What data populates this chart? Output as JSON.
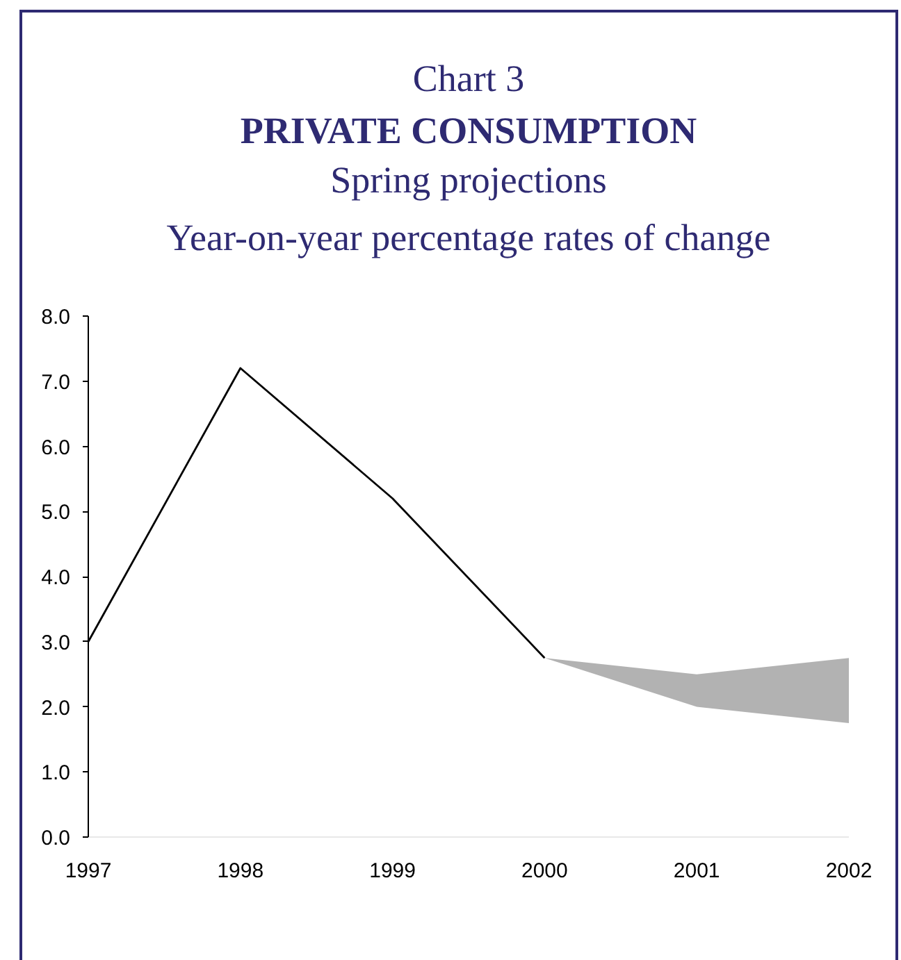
{
  "chart_data": {
    "type": "line",
    "annotations": [
      "Chart 3"
    ],
    "title": "PRIVATE CONSUMPTION",
    "subtitle": "Spring projections\nYear-on-year percentage rates of change",
    "x": [
      1997,
      1998,
      1999,
      2000,
      2001,
      2002
    ],
    "series": [
      {
        "color": "#000000",
        "values": [
          3.0,
          7.2,
          5.2,
          2.75,
          null,
          null
        ],
        "lower": [
          null,
          null,
          null,
          2.75,
          2.0,
          1.75
        ],
        "upper": [
          null,
          null,
          null,
          2.75,
          2.5,
          2.75
        ]
      }
    ],
    "xlim": [
      1997,
      2002
    ],
    "xticks": [
      1997,
      1998,
      1999,
      2000,
      2001,
      2002
    ],
    "ylim": [
      0,
      8
    ],
    "yticks": [
      {
        "value": 0,
        "label": "0.0"
      },
      {
        "value": 1,
        "label": "1.0"
      },
      {
        "value": 2,
        "label": "2.0"
      },
      {
        "value": 3,
        "label": "3.0"
      },
      {
        "value": 4,
        "label": "4.0"
      },
      {
        "value": 5,
        "label": "5.0"
      },
      {
        "value": 6,
        "label": "6.0"
      },
      {
        "value": 7,
        "label": "7.0"
      },
      {
        "value": 8,
        "label": "8.0"
      }
    ],
    "marker": "none",
    "line_style": "solid"
  }
}
